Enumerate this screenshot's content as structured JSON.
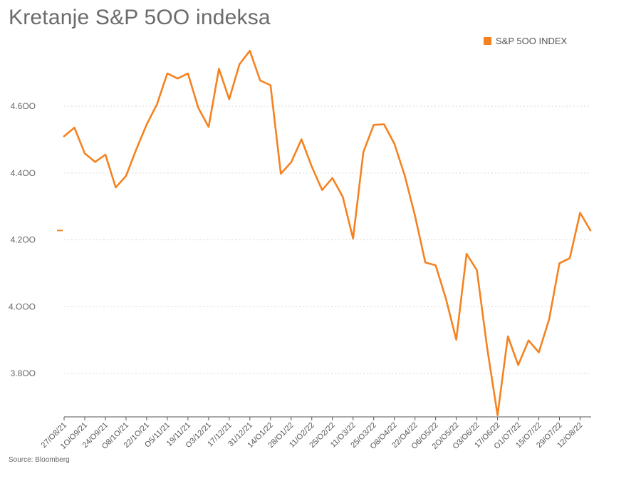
{
  "title": "Kretanje S&P 5OO indeksa",
  "source": "Source: Bloomberg",
  "colors": {
    "series": "#f58220",
    "grid": "#d9d9d9",
    "axis": "#555555"
  },
  "chart_data": {
    "type": "line",
    "title": "Kretanje S&P 5OO indeksa",
    "xlabel": "",
    "ylabel": "",
    "ylim": [
      3670,
      4790
    ],
    "yticks": [
      {
        "value": 3800,
        "label": "3.8OO"
      },
      {
        "value": 4000,
        "label": "4.OOO"
      },
      {
        "value": 4200,
        "label": "4.2OO"
      },
      {
        "value": 4400,
        "label": "4.4OO"
      },
      {
        "value": 4600,
        "label": "4.6OO"
      }
    ],
    "grid": true,
    "legend_position": "top-right",
    "x": [
      "27/08/21",
      "03/09/21",
      "10/09/21",
      "17/09/21",
      "24/09/21",
      "01/10/21",
      "08/10/21",
      "15/10/21",
      "22/10/21",
      "29/10/21",
      "05/11/21",
      "12/11/21",
      "19/11/21",
      "26/11/21",
      "03/12/21",
      "10/12/21",
      "17/12/21",
      "24/12/21",
      "31/12/21",
      "07/01/22",
      "14/01/22",
      "21/01/22",
      "28/01/22",
      "04/02/22",
      "11/02/22",
      "18/02/22",
      "25/02/22",
      "04/03/22",
      "11/03/22",
      "18/03/22",
      "25/03/22",
      "01/04/22",
      "08/04/22",
      "15/04/22",
      "22/04/22",
      "29/04/22",
      "06/05/22",
      "13/05/22",
      "20/05/22",
      "27/05/22",
      "03/06/22",
      "10/06/22",
      "17/06/22",
      "24/06/22",
      "01/07/22",
      "08/07/22",
      "15/07/22",
      "22/07/22",
      "29/07/22",
      "05/08/22",
      "12/08/22",
      "19/08/22"
    ],
    "x_tick_labels": [
      "27/O8/21",
      "1O/O9/21",
      "24/O9/21",
      "O8/1O/21",
      "22/1O/21",
      "O5/11/21",
      "19/11/21",
      "O3/12/21",
      "17/12/21",
      "31/12/21",
      "14/O1/22",
      "28/O1/22",
      "11/O2/22",
      "25/O2/22",
      "11/O3/22",
      "25/O3/22",
      "O8/O4/22",
      "22/O4/22",
      "O6/O5/22",
      "2O/O5/22",
      "O3/O6/22",
      "17/O6/22",
      "O1/O7/22",
      "15/O7/22",
      "29/O7/22",
      "12/O8/22"
    ],
    "series": [
      {
        "name": "S&P 5OO INDEX",
        "values": [
          4510,
          4536,
          4459,
          4433,
          4455,
          4357,
          4391,
          4471,
          4545,
          4606,
          4698,
          4683,
          4698,
          4595,
          4538,
          4712,
          4621,
          4726,
          4766,
          4677,
          4663,
          4398,
          4432,
          4501,
          4419,
          4349,
          4385,
          4329,
          4204,
          4463,
          4544,
          4546,
          4488,
          4393,
          4272,
          4132,
          4124,
          4024,
          3901,
          4158,
          4109,
          3875,
          3675,
          3911,
          3825,
          3899,
          3863,
          3962,
          4130,
          4145,
          4281,
          4228
        ]
      }
    ]
  }
}
